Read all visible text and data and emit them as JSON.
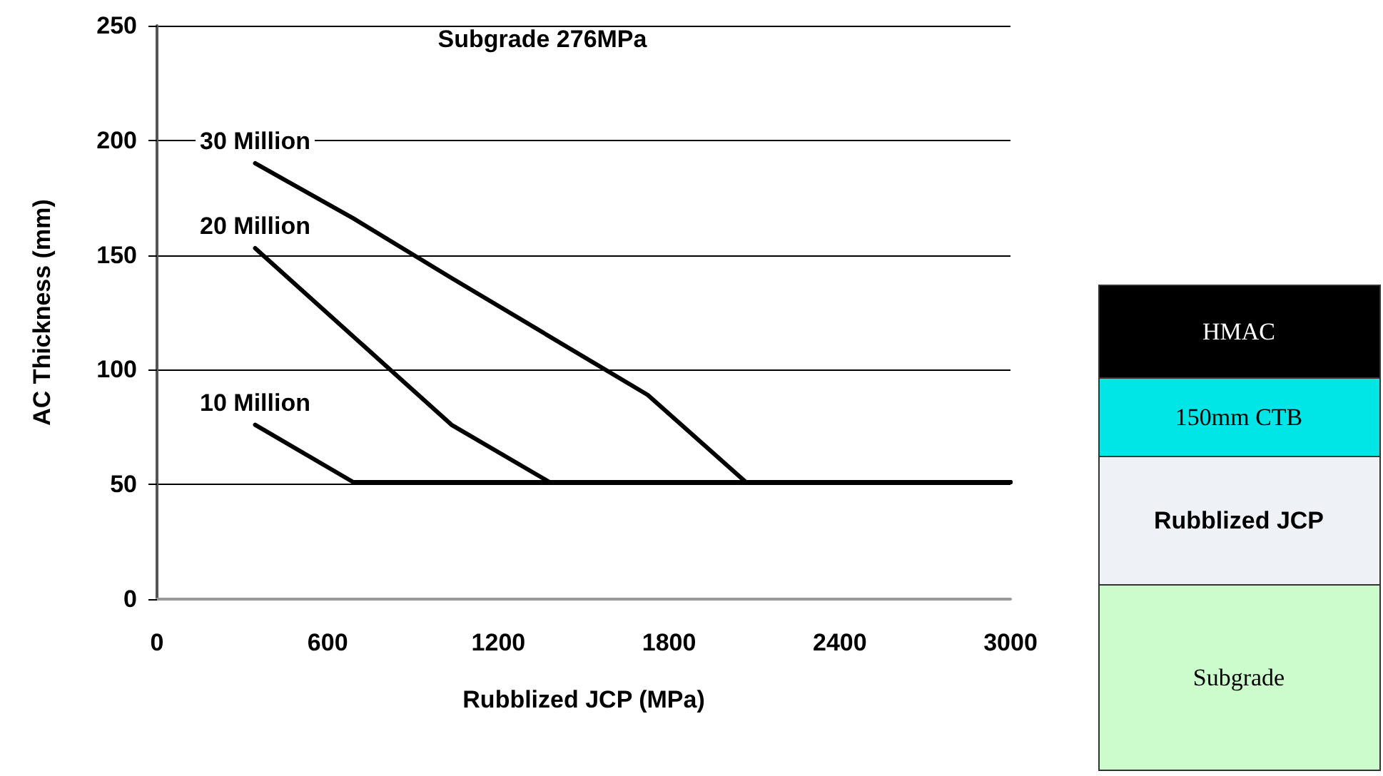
{
  "chart_data": {
    "type": "line",
    "title": "Subgrade 276MPa",
    "xlabel": "Rubblized JCP (MPa)",
    "ylabel": "AC Thickness (mm)",
    "series": [
      {
        "name": "30 Million",
        "color": "#000000",
        "x": [
          345,
          690,
          1035,
          1725,
          2070,
          3000
        ],
        "values": [
          190,
          166,
          140,
          89,
          51,
          51
        ]
      },
      {
        "name": "20 Million",
        "color": "#000000",
        "x": [
          345,
          1035,
          1380,
          3000
        ],
        "values": [
          153,
          76,
          51,
          51
        ]
      },
      {
        "name": "10 Million",
        "color": "#000000",
        "x": [
          345,
          690,
          3000
        ],
        "values": [
          76,
          51,
          51
        ]
      }
    ],
    "xlim": [
      0,
      3000
    ],
    "xticks": [
      0,
      600,
      1200,
      1800,
      2400,
      3000
    ],
    "ylim": [
      0,
      250
    ],
    "yticks": [
      0,
      50,
      100,
      150,
      200,
      250
    ],
    "grid": "y",
    "legend": false,
    "marker": "none",
    "line_style": "solid",
    "annotations": [
      "HMAC",
      "150mm CTB",
      "Rubblized JCP",
      "Subgrade"
    ]
  }
}
